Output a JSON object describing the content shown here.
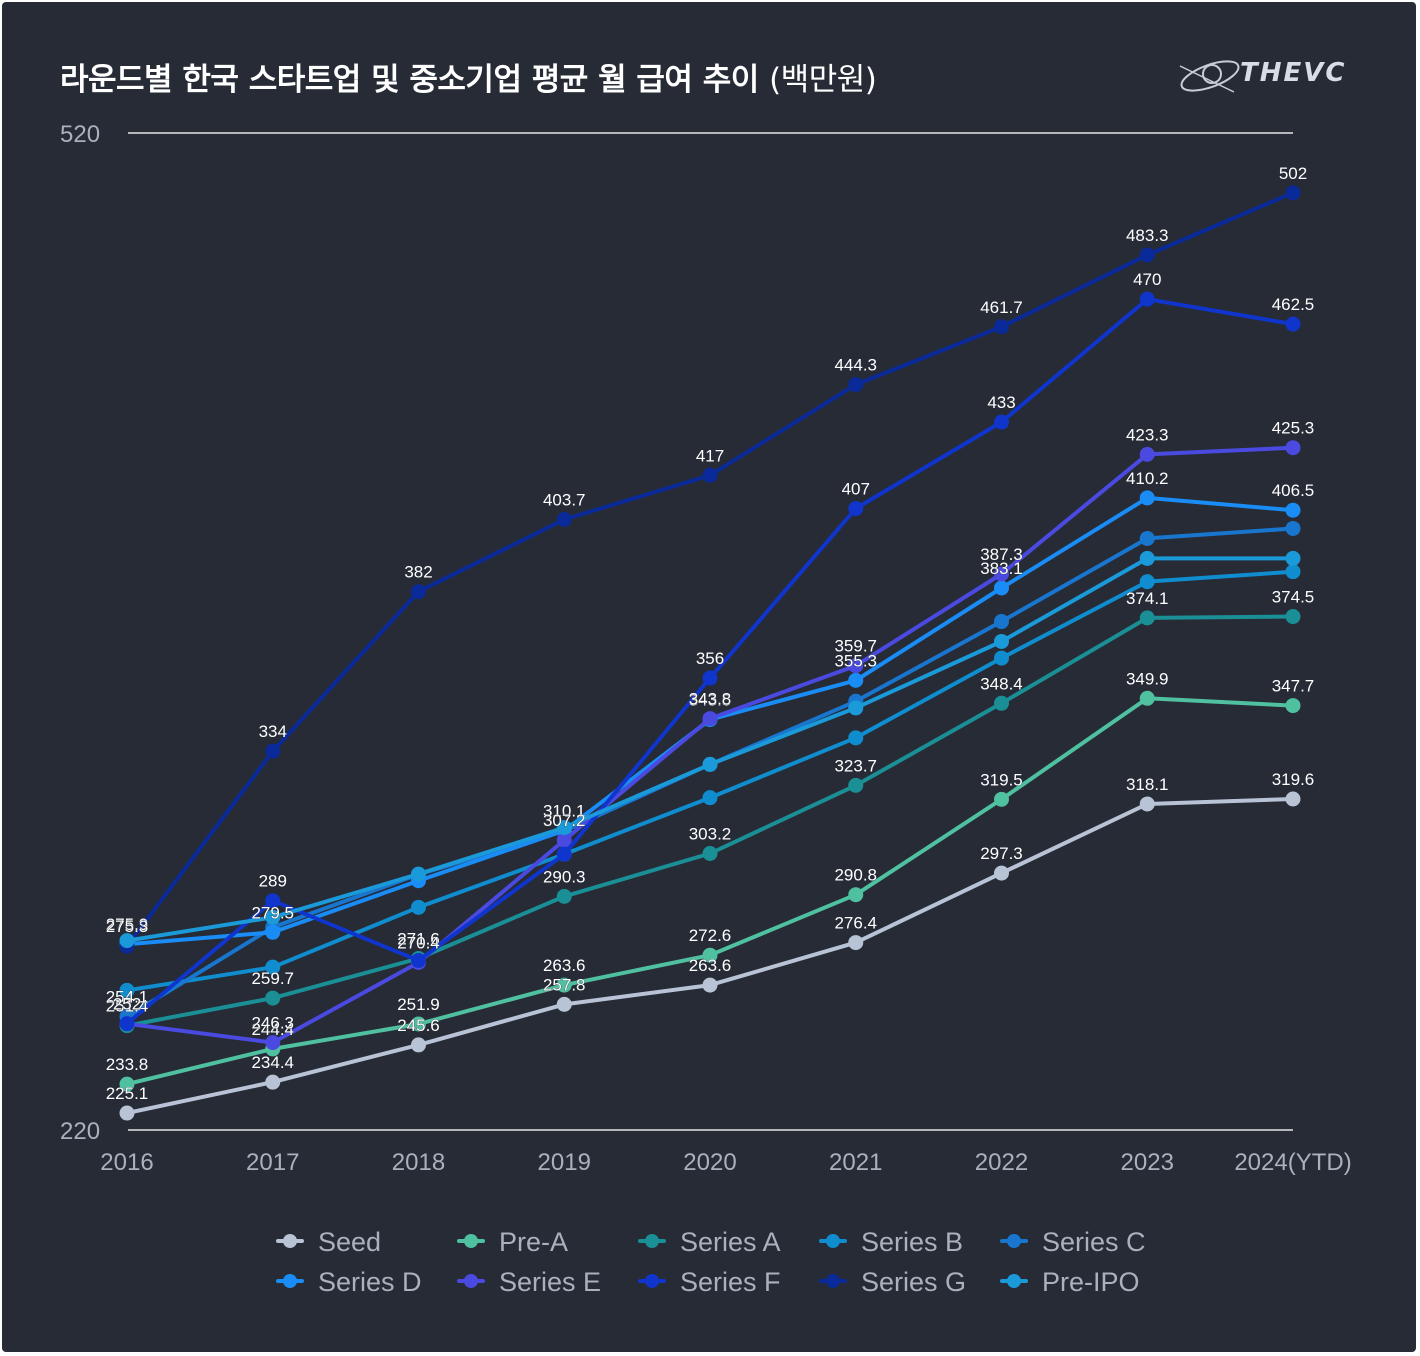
{
  "title": "라운드별 한국 스타트업 및 중소기업 평균 월 급여 추이",
  "title_unit": "(백만원)",
  "logo_text": "THEVC",
  "colors": {
    "background": "#262b36",
    "grid": "#e6e6e6",
    "axis_text": "#aab0bc",
    "label_text": "#ffffff"
  },
  "chart_data": {
    "type": "line",
    "title": "라운드별 한국 스타트업 및 중소기업 평균 월 급여 추이 (백만원)",
    "categories": [
      "2016",
      "2017",
      "2018",
      "2019",
      "2020",
      "2021",
      "2022",
      "2023",
      "2024(YTD)"
    ],
    "y_tick_labels": [
      "520",
      "220"
    ],
    "ylim": [
      220,
      520
    ],
    "legend_position": "bottom",
    "series": [
      {
        "name": "Seed",
        "color": "#b8c3d6",
        "values": [
          225.1,
          234.4,
          245.6,
          257.8,
          263.6,
          276.4,
          297.3,
          318.1,
          319.6
        ],
        "labels": [
          "225.1",
          "234.4",
          "245.6",
          "257.8",
          "263.6",
          "276.4",
          "297.3",
          "318.1",
          "319.6"
        ]
      },
      {
        "name": "Pre-A",
        "color": "#4fc0a0",
        "values": [
          233.8,
          244.4,
          251.9,
          263.6,
          272.6,
          290.8,
          319.5,
          349.9,
          347.7
        ],
        "labels": [
          "233.8",
          "244.4",
          "251.9",
          "263.6",
          "272.6",
          "290.8",
          "319.5",
          "349.9",
          "347.7"
        ]
      },
      {
        "name": "Series A",
        "color": "#1a8f96",
        "values": [
          251.4,
          259.7,
          271.6,
          290.3,
          303.2,
          323.7,
          348.4,
          374.1,
          374.5
        ],
        "labels": [
          "251.4",
          "259.7",
          "271.6",
          "290.3",
          "303.2",
          "323.7",
          "348.4",
          "374.1",
          "374.5"
        ]
      },
      {
        "name": "Series B",
        "color": "#108dcf",
        "values": [
          262,
          269,
          287,
          303,
          320,
          338,
          362,
          385,
          388
        ],
        "labels": []
      },
      {
        "name": "Series C",
        "color": "#1976cf",
        "values": [
          254.1,
          281,
          296.9,
          310,
          330,
          349,
          373,
          398,
          401
        ],
        "labels": [
          "254.1",
          "",
          "",
          "",
          "",
          "",
          "",
          "",
          ""
        ]
      },
      {
        "name": "Series D",
        "color": "#1a8cf5",
        "values": [
          275.9,
          279.5,
          295,
          310.1,
          343.5,
          355.3,
          383.1,
          410.2,
          406.5
        ],
        "labels": [
          "275.9",
          "279.5",
          "",
          "310.1",
          "343.5",
          "355.3",
          "383.1",
          "410.2",
          "406.5"
        ]
      },
      {
        "name": "Series E",
        "color": "#4a4ae0",
        "values": [
          252,
          246.3,
          270.4,
          307.2,
          343.8,
          359.7,
          387.3,
          423.3,
          425.3
        ],
        "labels": [
          "252",
          "246.3",
          "270.4",
          "307.2",
          "343.8",
          "359.7",
          "387.3",
          "423.3",
          "425.3"
        ]
      },
      {
        "name": "Series F",
        "color": "#1035cc",
        "values": [
          252,
          289,
          271,
          303,
          356,
          407,
          433,
          470,
          462.5
        ],
        "labels": [
          "",
          "289",
          "",
          "",
          "356",
          "407",
          "433",
          "470",
          "462.5"
        ]
      },
      {
        "name": "Series G",
        "color": "#0a2a9a",
        "values": [
          275.3,
          334,
          382,
          403.7,
          417,
          444.3,
          461.7,
          483.3,
          502
        ],
        "labels": [
          "275.3",
          "334",
          "382",
          "403.7",
          "417",
          "444.3",
          "461.7",
          "483.3",
          "502"
        ]
      },
      {
        "name": "Pre-IPO",
        "color": "#1a9ad8",
        "values": [
          277,
          284,
          297,
          311,
          330,
          347,
          367,
          392,
          392
        ],
        "labels": []
      }
    ]
  }
}
